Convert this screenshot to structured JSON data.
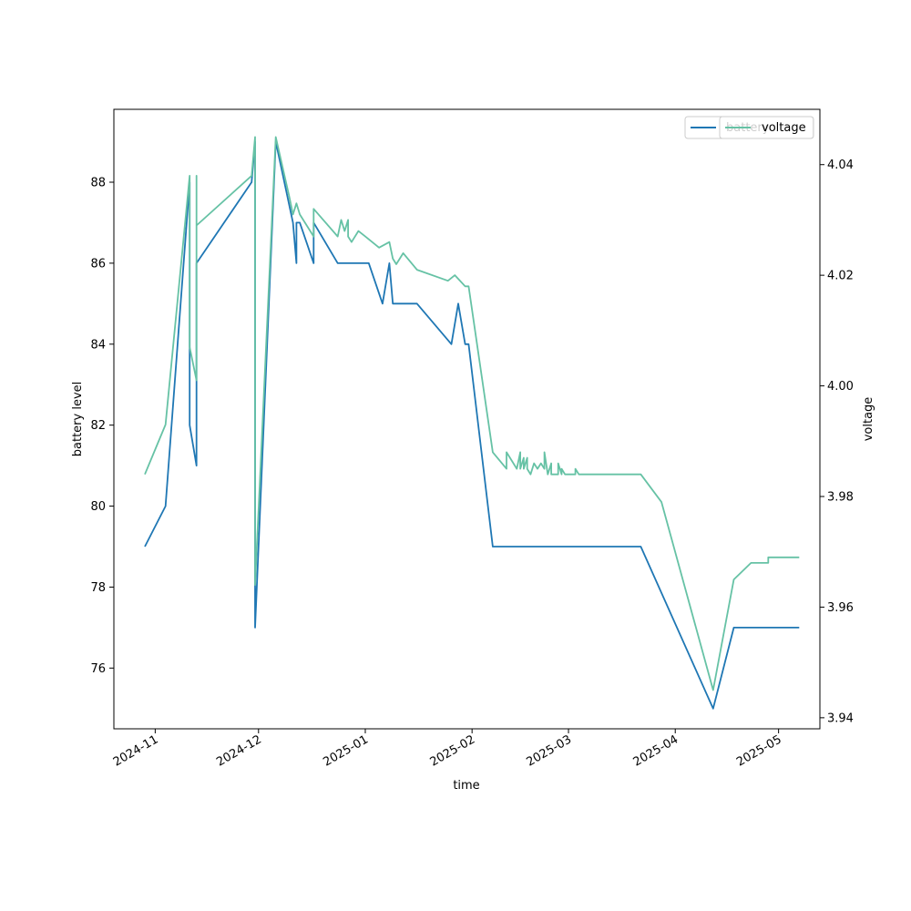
{
  "chart_data": {
    "type": "line",
    "xlabel": "time",
    "ylabel_left": "battery level",
    "ylabel_right": "voltage",
    "x_ticks": [
      "2024-11",
      "2024-12",
      "2025-01",
      "2025-02",
      "2025-03",
      "2025-04",
      "2025-05"
    ],
    "xlim": [
      "2024-10-20",
      "2025-05-13"
    ],
    "ylim_left": [
      74.5,
      89.8
    ],
    "ylim_right": [
      3.938,
      4.05
    ],
    "y_ticks_left": [
      76,
      78,
      80,
      82,
      84,
      86,
      88
    ],
    "y_ticks_right": [
      3.94,
      3.96,
      3.98,
      4.0,
      4.02,
      4.04
    ],
    "grid": false,
    "legend": [
      {
        "label": "battery",
        "placement": "top-right"
      },
      {
        "label": "voltage",
        "placement": "top-right"
      }
    ],
    "colors": {
      "battery": "#1f77b4",
      "voltage": "#66c2a5"
    },
    "series": [
      {
        "name": "battery",
        "axis": "left",
        "points": [
          [
            "2024-10-29",
            79
          ],
          [
            "2024-11-04",
            80
          ],
          [
            "2024-11-11",
            88
          ],
          [
            "2024-11-11",
            82
          ],
          [
            "2024-11-13",
            81
          ],
          [
            "2024-11-13",
            86
          ],
          [
            "2024-11-29",
            88
          ],
          [
            "2024-11-30",
            89
          ],
          [
            "2024-11-30",
            77
          ],
          [
            "2024-12-06",
            89
          ],
          [
            "2024-12-11",
            87
          ],
          [
            "2024-12-12",
            86
          ],
          [
            "2024-12-12",
            87
          ],
          [
            "2024-12-13",
            87
          ],
          [
            "2024-12-17",
            86
          ],
          [
            "2024-12-17",
            87
          ],
          [
            "2024-12-24",
            86
          ],
          [
            "2025-01-02",
            86
          ],
          [
            "2025-01-06",
            85
          ],
          [
            "2025-01-08",
            86
          ],
          [
            "2025-01-09",
            85
          ],
          [
            "2025-01-16",
            85
          ],
          [
            "2025-01-26",
            84
          ],
          [
            "2025-01-28",
            85
          ],
          [
            "2025-01-30",
            84
          ],
          [
            "2025-01-31",
            84
          ],
          [
            "2025-02-07",
            79
          ],
          [
            "2025-03-22",
            79
          ],
          [
            "2025-04-12",
            75
          ],
          [
            "2025-04-18",
            77
          ],
          [
            "2025-05-07",
            77
          ]
        ]
      },
      {
        "name": "voltage",
        "axis": "right",
        "points": [
          [
            "2024-10-29",
            3.984
          ],
          [
            "2024-11-04",
            3.993
          ],
          [
            "2024-11-11",
            4.038
          ],
          [
            "2024-11-11",
            4.007
          ],
          [
            "2024-11-13",
            4.001
          ],
          [
            "2024-11-13",
            4.038
          ],
          [
            "2024-11-13",
            4.029
          ],
          [
            "2024-11-29",
            4.038
          ],
          [
            "2024-11-30",
            4.045
          ],
          [
            "2024-11-30",
            3.964
          ],
          [
            "2024-12-06",
            4.045
          ],
          [
            "2024-12-10",
            4.034
          ],
          [
            "2024-12-11",
            4.031
          ],
          [
            "2024-12-12",
            4.033
          ],
          [
            "2024-12-13",
            4.031
          ],
          [
            "2024-12-17",
            4.027
          ],
          [
            "2024-12-17",
            4.032
          ],
          [
            "2024-12-24",
            4.027
          ],
          [
            "2024-12-25",
            4.03
          ],
          [
            "2024-12-26",
            4.028
          ],
          [
            "2024-12-27",
            4.03
          ],
          [
            "2024-12-27",
            4.027
          ],
          [
            "2024-12-28",
            4.026
          ],
          [
            "2024-12-30",
            4.028
          ],
          [
            "2025-01-01",
            4.027
          ],
          [
            "2025-01-05",
            4.025
          ],
          [
            "2025-01-08",
            4.026
          ],
          [
            "2025-01-09",
            4.023
          ],
          [
            "2025-01-10",
            4.022
          ],
          [
            "2025-01-12",
            4.024
          ],
          [
            "2025-01-16",
            4.021
          ],
          [
            "2025-01-25",
            4.019
          ],
          [
            "2025-01-27",
            4.02
          ],
          [
            "2025-01-30",
            4.018
          ],
          [
            "2025-01-31",
            4.018
          ],
          [
            "2025-02-07",
            3.988
          ],
          [
            "2025-02-11",
            3.985
          ],
          [
            "2025-02-11",
            3.988
          ],
          [
            "2025-02-14",
            3.985
          ],
          [
            "2025-02-15",
            3.988
          ],
          [
            "2025-02-15",
            3.985
          ],
          [
            "2025-02-16",
            3.987
          ],
          [
            "2025-02-16",
            3.985
          ],
          [
            "2025-02-17",
            3.987
          ],
          [
            "2025-02-17",
            3.985
          ],
          [
            "2025-02-18",
            3.984
          ],
          [
            "2025-02-19",
            3.986
          ],
          [
            "2025-02-20",
            3.985
          ],
          [
            "2025-02-21",
            3.986
          ],
          [
            "2025-02-22",
            3.985
          ],
          [
            "2025-02-22",
            3.988
          ],
          [
            "2025-02-23",
            3.984
          ],
          [
            "2025-02-24",
            3.986
          ],
          [
            "2025-02-24",
            3.984
          ],
          [
            "2025-02-26",
            3.984
          ],
          [
            "2025-02-26",
            3.986
          ],
          [
            "2025-02-27",
            3.984
          ],
          [
            "2025-02-27",
            3.985
          ],
          [
            "2025-02-28",
            3.984
          ],
          [
            "2025-03-03",
            3.984
          ],
          [
            "2025-03-03",
            3.985
          ],
          [
            "2025-03-04",
            3.984
          ],
          [
            "2025-03-22",
            3.984
          ],
          [
            "2025-03-28",
            3.979
          ],
          [
            "2025-04-12",
            3.945
          ],
          [
            "2025-04-18",
            3.965
          ],
          [
            "2025-04-23",
            3.968
          ],
          [
            "2025-04-28",
            3.968
          ],
          [
            "2025-04-28",
            3.969
          ],
          [
            "2025-05-07",
            3.969
          ]
        ]
      }
    ]
  }
}
